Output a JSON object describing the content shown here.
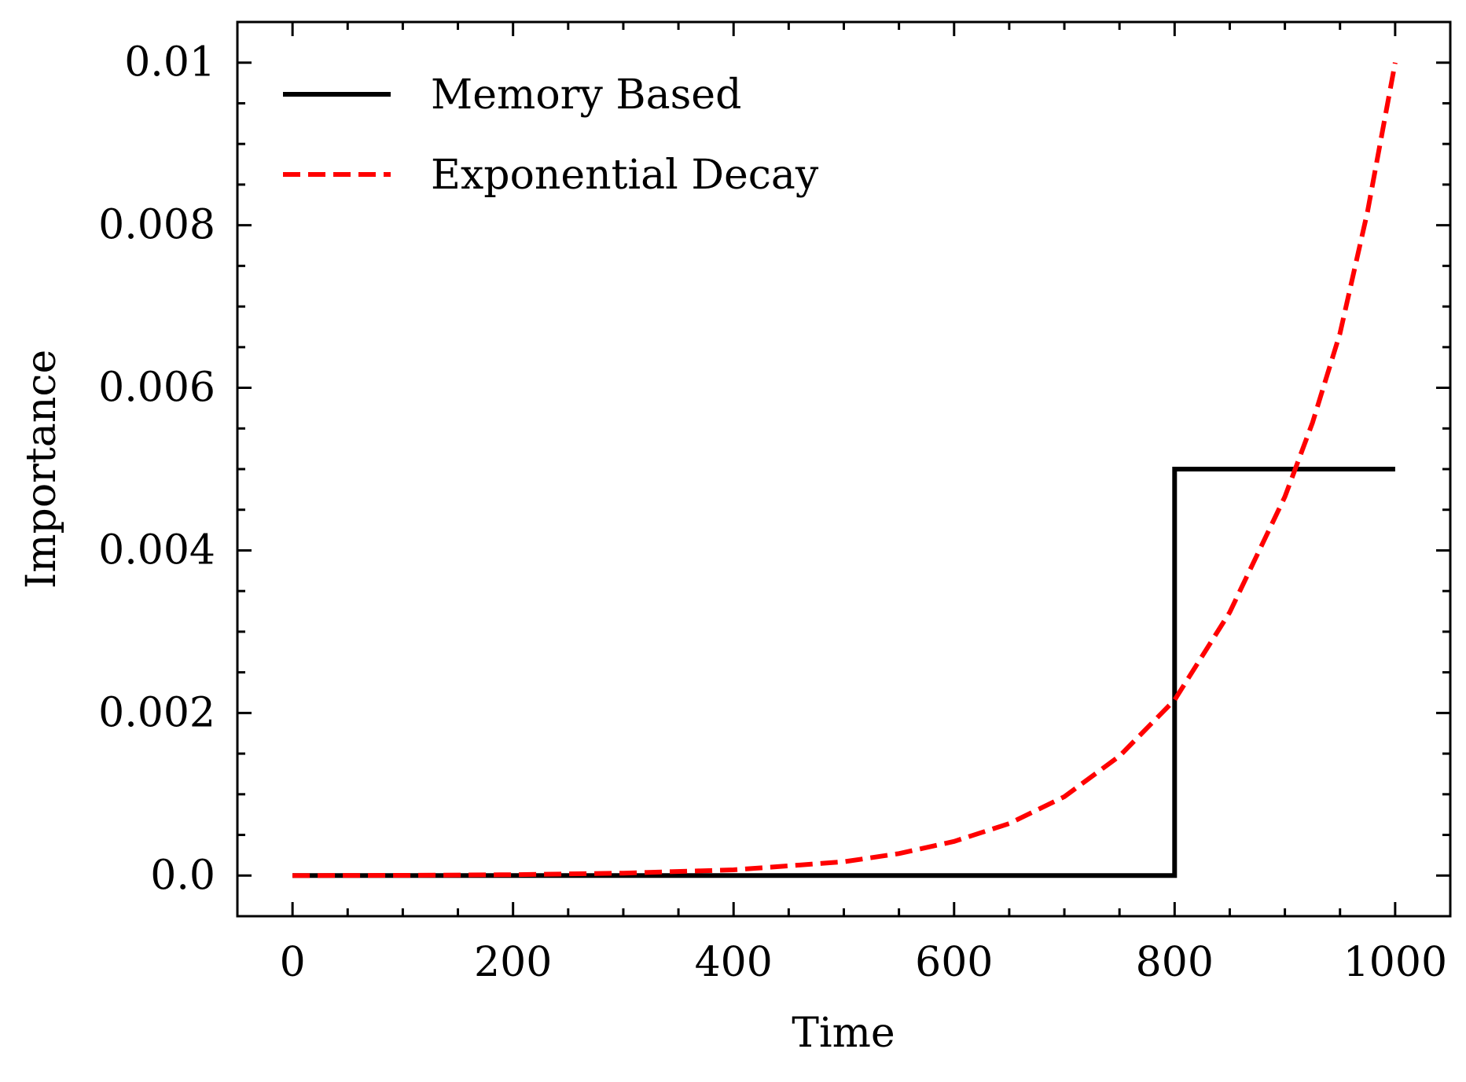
{
  "chart_data": {
    "type": "line",
    "title": "",
    "xlabel": "Time",
    "ylabel": "Importance",
    "xlim": [
      -50,
      1050
    ],
    "ylim": [
      -0.0005,
      0.0105
    ],
    "x_ticks": [
      0,
      200,
      400,
      600,
      800,
      1000
    ],
    "x_tick_labels": [
      "0",
      "200",
      "400",
      "600",
      "800",
      "1000"
    ],
    "x_minor_step": 50,
    "y_ticks": [
      0,
      0.002,
      0.004,
      0.006,
      0.008,
      0.01
    ],
    "y_tick_labels": [
      "0.0",
      "0.002",
      "0.004",
      "0.006",
      "0.008",
      "0.01"
    ],
    "y_minor_step": 0.0005,
    "grid": false,
    "legend_position": "top-left",
    "series": [
      {
        "name": "Memory Based",
        "color": "#000000",
        "style": "solid",
        "x": [
          0,
          800,
          800,
          1000
        ],
        "y": [
          0,
          0,
          0.005,
          0.005
        ]
      },
      {
        "name": "Exponential Decay",
        "color": "#ff0000",
        "style": "dashed",
        "x": [
          0,
          100,
          200,
          300,
          400,
          450,
          500,
          550,
          600,
          650,
          700,
          750,
          800,
          850,
          900,
          925,
          950,
          975,
          1000
        ],
        "y": [
          0.0,
          3e-06,
          1e-05,
          3e-05,
          7e-05,
          0.00012,
          0.00017,
          0.00027,
          0.00042,
          0.00064,
          0.00097,
          0.00147,
          0.00216,
          0.00324,
          0.00466,
          0.00557,
          0.00667,
          0.00817,
          0.01
        ]
      }
    ]
  }
}
